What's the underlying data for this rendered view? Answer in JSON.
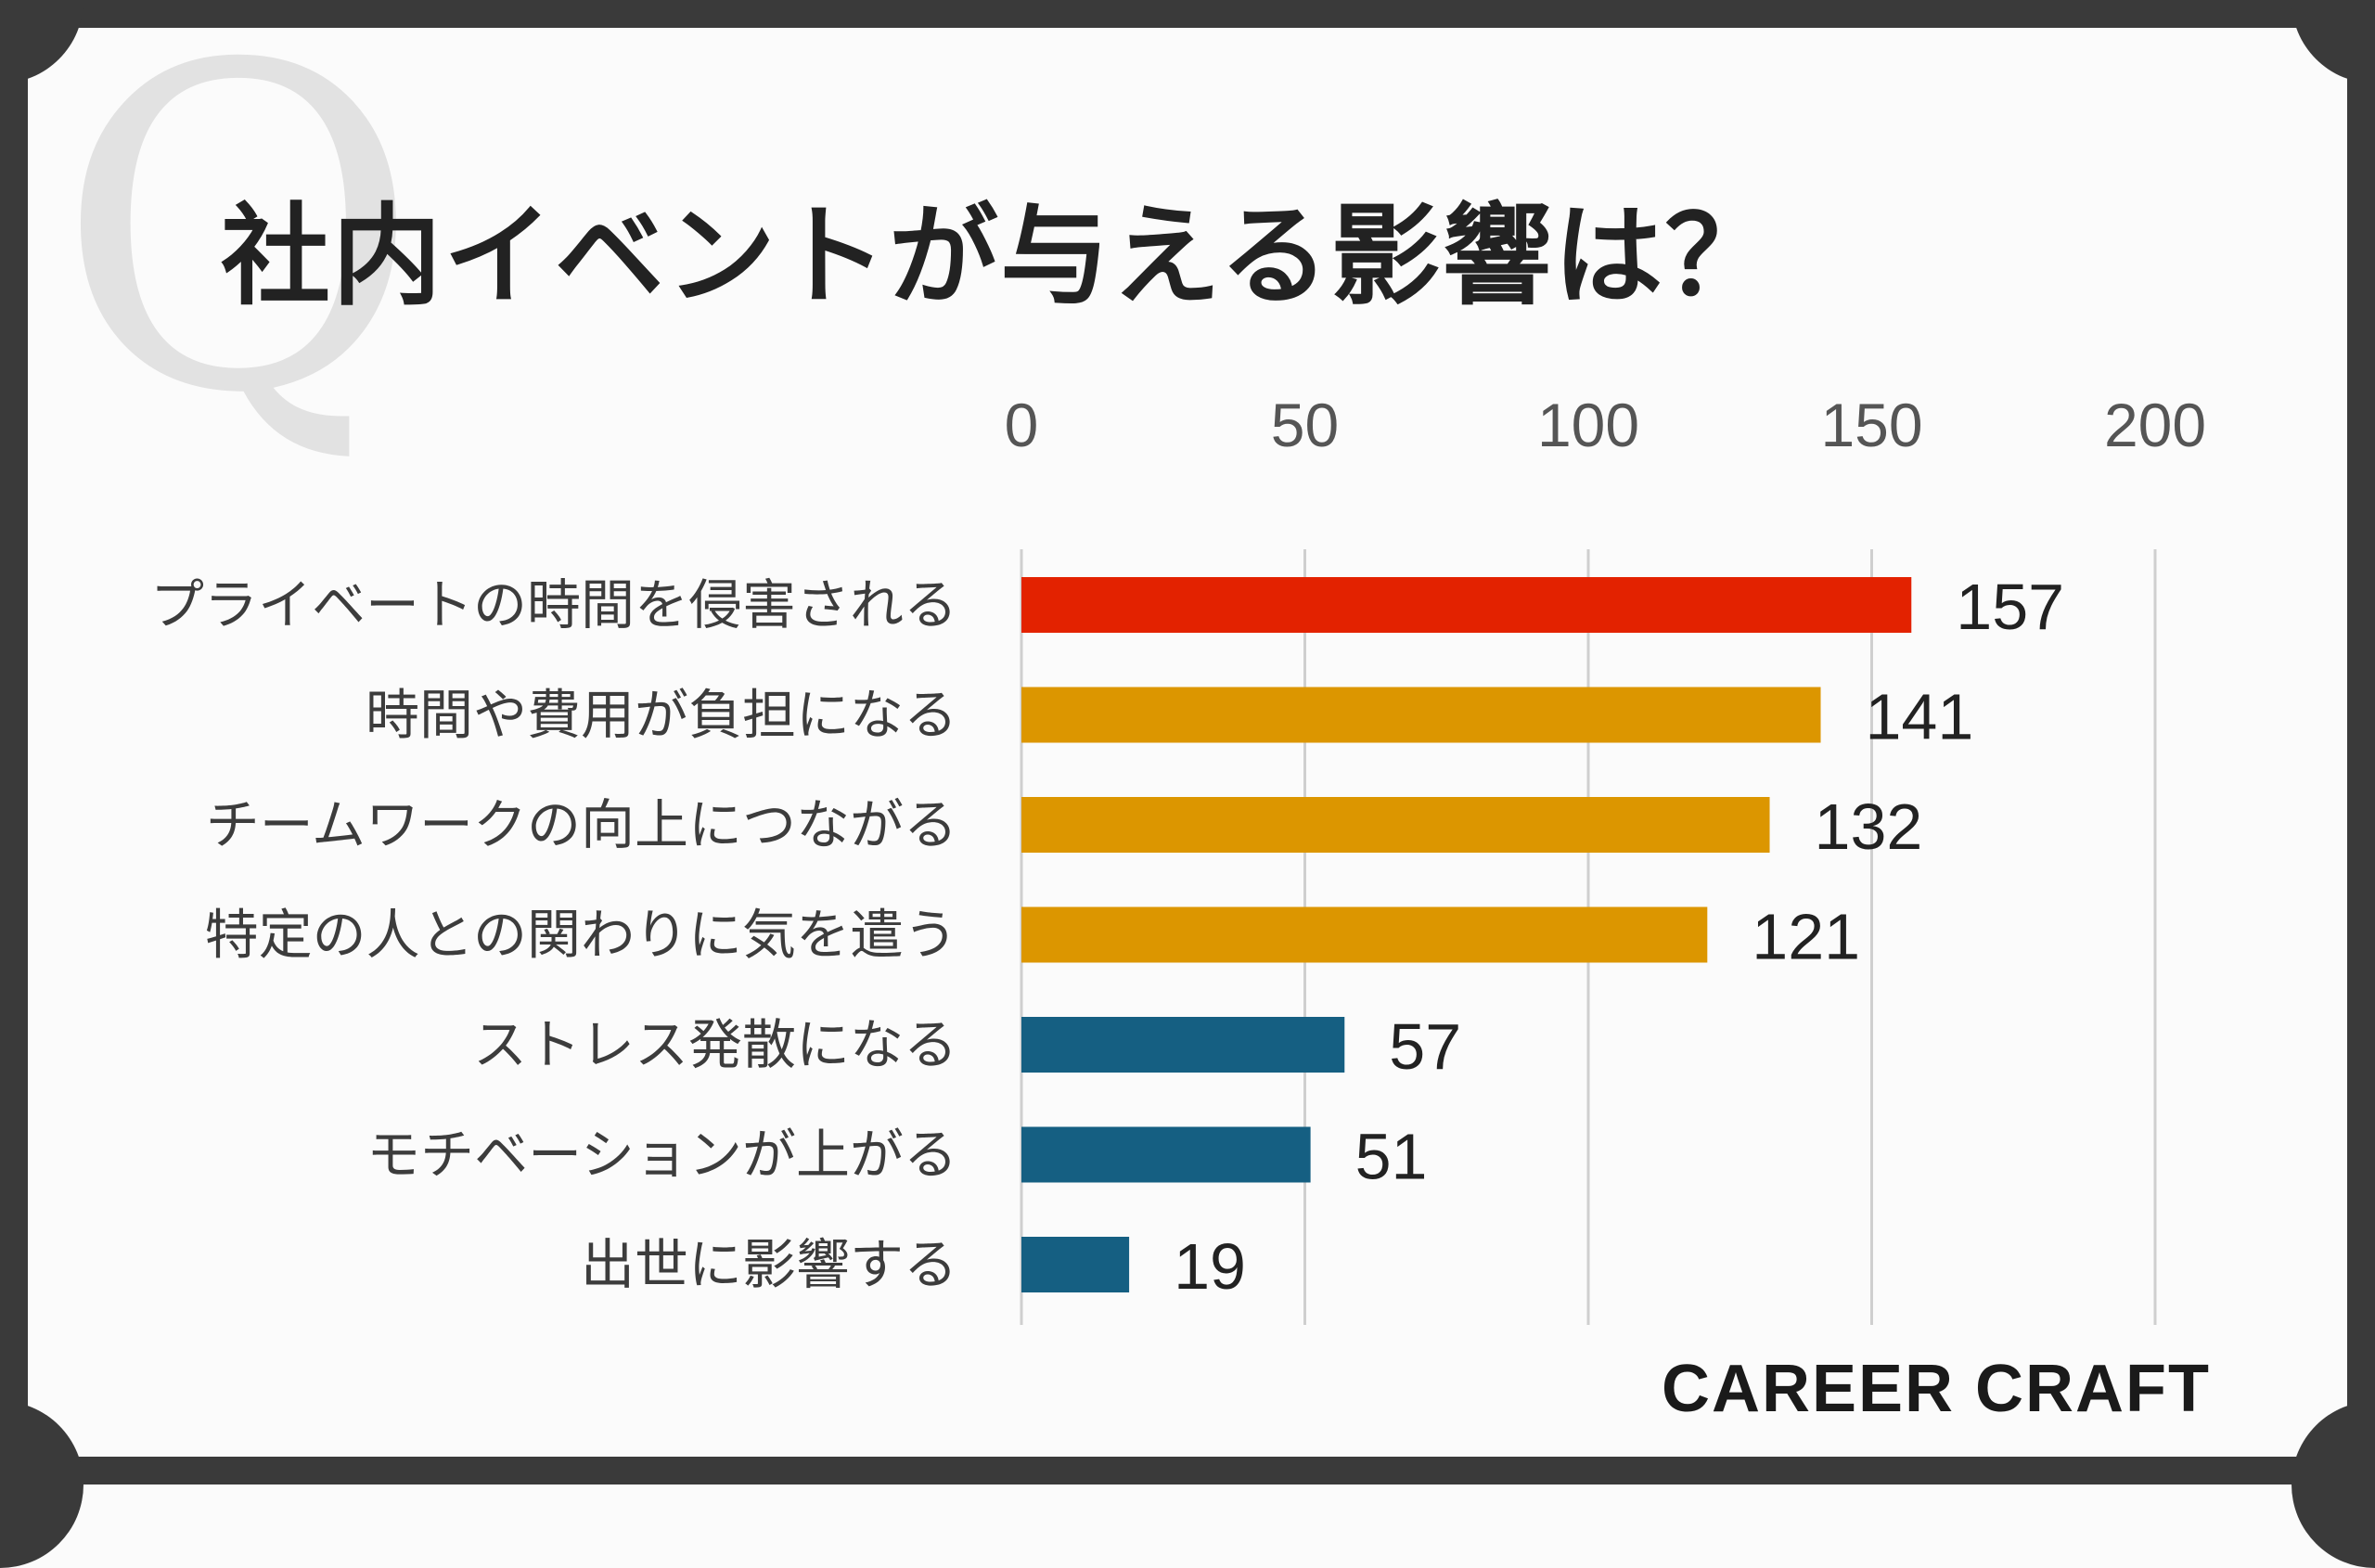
{
  "title": "社内イベントが与える影響は？",
  "watermark": "Q",
  "brand": "CAREER CRAFT",
  "colors": {
    "frame": "#3a3a3a",
    "background": "#fbfbfb",
    "highlight": "#e32200",
    "mid": "#dc9600",
    "low": "#155f82",
    "grid": "#cfcfcf",
    "text": "#3c3c3c"
  },
  "chart_data": {
    "type": "bar",
    "orientation": "horizontal",
    "categories": [
      "プライベートの時間を侵害される",
      "時間や費用が負担になる",
      "チームワークの向上につながる",
      "特定の人との関わりに気を遣う",
      "ストレス発散になる",
      "モチベーションが上がる",
      "出世に影響する"
    ],
    "values": [
      157,
      141,
      132,
      121,
      57,
      51,
      19
    ],
    "bar_colors": [
      "highlight",
      "mid",
      "mid",
      "mid",
      "low",
      "low",
      "low"
    ],
    "xlim": [
      0,
      200
    ],
    "xticks": [
      0,
      50,
      100,
      150,
      200
    ],
    "tick_position": "top",
    "grid": true,
    "legend": "none",
    "data_labels": true
  }
}
